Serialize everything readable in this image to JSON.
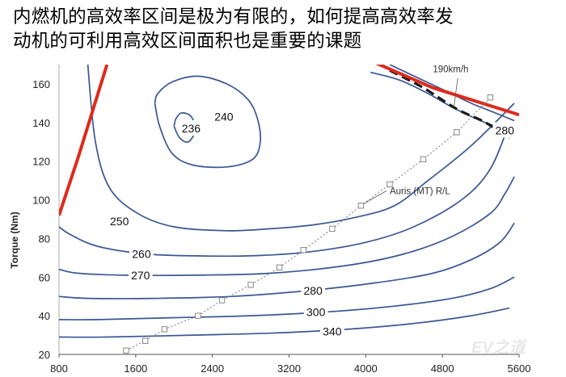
{
  "caption": {
    "line1": "内燃机的高效率区间是极为有限的，如何提高高效率发",
    "line2": "动机的可利用高效区间面积也是重要的课题"
  },
  "chart_data": {
    "type": "contour",
    "xlabel": "",
    "ylabel": "Torque (Nm)",
    "xlim": [
      800,
      5600
    ],
    "ylim": [
      20,
      170
    ],
    "xticks": [
      800,
      1600,
      2400,
      3200,
      4000,
      4800,
      5600
    ],
    "yticks": [
      20,
      40,
      60,
      80,
      100,
      120,
      140,
      160
    ],
    "contours": [
      {
        "label": "236",
        "points": [
          [
            2000,
            138
          ],
          [
            2060,
            132
          ],
          [
            2150,
            130
          ],
          [
            2220,
            136
          ],
          [
            2180,
            143
          ],
          [
            2080,
            145
          ],
          [
            2020,
            142
          ],
          [
            2000,
            138
          ]
        ]
      },
      {
        "label": "240",
        "points": [
          [
            1800,
            150
          ],
          [
            1850,
            138
          ],
          [
            1980,
            124
          ],
          [
            2200,
            118
          ],
          [
            2550,
            117
          ],
          [
            2820,
            121
          ],
          [
            2900,
            130
          ],
          [
            2870,
            142
          ],
          [
            2770,
            152
          ],
          [
            2550,
            160
          ],
          [
            2250,
            164
          ],
          [
            1980,
            161
          ],
          [
            1830,
            155
          ],
          [
            1800,
            150
          ]
        ]
      },
      {
        "label": "250",
        "points": [
          [
            1100,
            170
          ],
          [
            1180,
            130
          ],
          [
            1330,
            106
          ],
          [
            1620,
            93
          ],
          [
            2000,
            86
          ],
          [
            2550,
            84
          ],
          [
            3000,
            85
          ],
          [
            3450,
            87
          ],
          [
            3900,
            91
          ],
          [
            4300,
            97
          ],
          [
            4650,
            110
          ],
          [
            5100,
            128
          ],
          [
            5550,
            150
          ]
        ]
      },
      {
        "label": "260",
        "points": [
          [
            800,
            86
          ],
          [
            920,
            82
          ],
          [
            1200,
            76
          ],
          [
            1700,
            72
          ],
          [
            2200,
            71
          ],
          [
            2800,
            71
          ],
          [
            3400,
            73
          ],
          [
            4000,
            78
          ],
          [
            4500,
            86
          ],
          [
            5000,
            100
          ],
          [
            5300,
            116
          ],
          [
            5500,
            140
          ]
        ]
      },
      {
        "label": "270",
        "points": [
          [
            800,
            64
          ],
          [
            1000,
            62
          ],
          [
            1500,
            61
          ],
          [
            2200,
            61
          ],
          [
            3000,
            62
          ],
          [
            3800,
            66
          ],
          [
            4400,
            72
          ],
          [
            4900,
            81
          ],
          [
            5300,
            93
          ],
          [
            5450,
            103
          ],
          [
            5550,
            112
          ]
        ]
      },
      {
        "label": "280",
        "points": [
          [
            800,
            50
          ],
          [
            1100,
            49
          ],
          [
            1800,
            49
          ],
          [
            2600,
            50
          ],
          [
            3400,
            53
          ],
          [
            4100,
            57
          ],
          [
            4700,
            62
          ],
          [
            5100,
            69
          ],
          [
            5400,
            78
          ],
          [
            5550,
            88
          ]
        ]
      },
      {
        "label": "300",
        "points": [
          [
            800,
            38
          ],
          [
            1200,
            38
          ],
          [
            2000,
            39
          ],
          [
            2800,
            40
          ],
          [
            3600,
            42
          ],
          [
            4300,
            45
          ],
          [
            4900,
            49
          ],
          [
            5300,
            54
          ],
          [
            5550,
            60
          ]
        ]
      },
      {
        "label": "340",
        "points": [
          [
            800,
            29
          ],
          [
            1300,
            29
          ],
          [
            2200,
            30
          ],
          [
            3000,
            31
          ],
          [
            3800,
            33
          ],
          [
            4500,
            36
          ],
          [
            5100,
            40
          ],
          [
            5500,
            44
          ]
        ]
      },
      {
        "label": "280",
        "points": [
          [
            4050,
            166
          ],
          [
            4350,
            162
          ],
          [
            4650,
            155
          ],
          [
            4900,
            148
          ],
          [
            5150,
            142
          ],
          [
            5350,
            138
          ],
          [
            5550,
            135
          ]
        ]
      },
      {
        "label": "",
        "points": [
          [
            4250,
            170
          ],
          [
            4550,
            163
          ],
          [
            4850,
            156
          ],
          [
            5100,
            150
          ],
          [
            5350,
            145
          ],
          [
            5550,
            141
          ]
        ]
      }
    ],
    "max_torque_lines": [
      {
        "color": "#dd2a1d",
        "points": [
          [
            800,
            92
          ],
          [
            1000,
            122
          ],
          [
            1300,
            170
          ]
        ]
      },
      {
        "color": "#dd2a1d",
        "points": [
          [
            4050,
            172
          ],
          [
            4700,
            158
          ],
          [
            5600,
            144
          ]
        ]
      }
    ],
    "boundary_dashed": {
      "color": "#1a1a1a",
      "points": [
        [
          4250,
          167
        ],
        [
          4600,
          158
        ],
        [
          4950,
          147
        ],
        [
          5250,
          140
        ],
        [
          5500,
          132
        ]
      ]
    },
    "road_load": {
      "name": "Auris (MT) R/L",
      "points": [
        [
          1500,
          22
        ],
        [
          1700,
          27
        ],
        [
          1900,
          33
        ],
        [
          2250,
          40
        ],
        [
          2500,
          48
        ],
        [
          2800,
          56
        ],
        [
          3100,
          65
        ],
        [
          3350,
          74
        ],
        [
          3650,
          85
        ],
        [
          3950,
          97
        ],
        [
          4250,
          108
        ],
        [
          4600,
          121
        ],
        [
          4950,
          135
        ],
        [
          5300,
          153
        ]
      ]
    },
    "annotations": [
      {
        "text": "Auris (MT) R/L"
      },
      {
        "text": "190km/h"
      }
    ]
  },
  "watermark": "EV之道"
}
